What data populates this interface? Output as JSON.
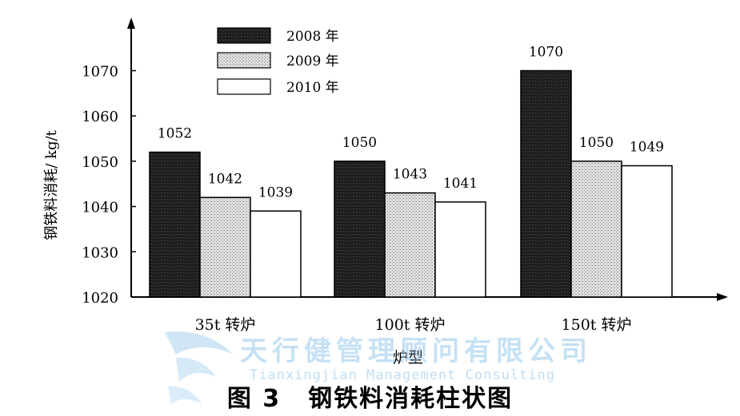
{
  "chart_data": {
    "type": "bar",
    "categories": [
      "35t 转炉",
      "100t 转炉",
      "150t 转炉"
    ],
    "series": [
      {
        "name": "2008 年",
        "values": [
          1052,
          1050,
          1070
        ],
        "pattern": "dark"
      },
      {
        "name": "2009 年",
        "values": [
          1042,
          1043,
          1050
        ],
        "pattern": "dotted"
      },
      {
        "name": "2010 年",
        "values": [
          1039,
          1041,
          1049
        ],
        "pattern": "white"
      }
    ],
    "data_labels": [
      [
        "1052",
        "1042",
        "1039"
      ],
      [
        "1050",
        "1043",
        "1041"
      ],
      [
        "1070",
        "1050",
        "1049"
      ]
    ],
    "xlabel": "炉型",
    "ylabel": "钢铁料消耗/ kg/t",
    "ylim": [
      1020,
      1080
    ],
    "yticks": [
      "1020",
      "1030",
      "1040",
      "1050",
      "1060",
      "1070"
    ],
    "legend": "top-center",
    "grid": false,
    "colors": {
      "dark": "#1a1a1a",
      "dotted": "#d9d9d9",
      "white": "#ffffff",
      "axis": "#000000"
    }
  },
  "caption": {
    "figure": "图 3",
    "title": "钢铁料消耗柱状图"
  },
  "watermark": {
    "cn": "天行健管理顾问有限公司",
    "en": "Tianxingjian Management Consulting"
  }
}
